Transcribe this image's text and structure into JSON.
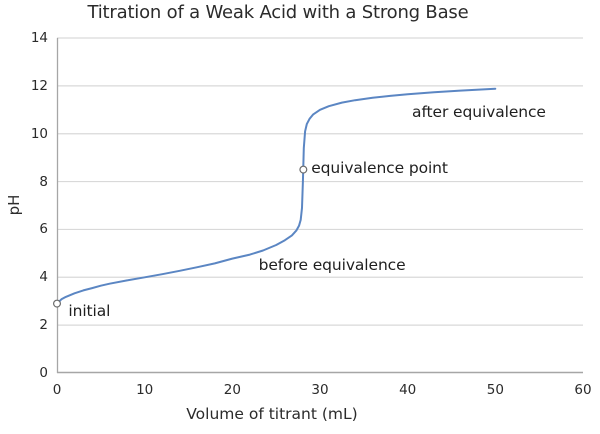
{
  "chart_data": {
    "type": "line",
    "title": "Titration of a Weak Acid with a Strong Base",
    "xlabel": "Volume of titrant (mL)",
    "ylabel": "pH",
    "xlim": [
      0,
      60
    ],
    "ylim": [
      0,
      14
    ],
    "xticks": [
      0,
      10,
      20,
      30,
      40,
      50,
      60
    ],
    "yticks": [
      0,
      2,
      4,
      6,
      8,
      10,
      12,
      14
    ],
    "grid": "horizontal",
    "legend": "none",
    "line_color": "#5B86C3",
    "grid_color": "#d9d9d9",
    "spine_color": "#a6a6a6",
    "marker_stroke_color": "#6b6b6b",
    "series": [
      {
        "name": "titration curve",
        "x": [
          0,
          0.5,
          1,
          2,
          3,
          4,
          5,
          6,
          8,
          10,
          12,
          14,
          16,
          18,
          20,
          22,
          23.5,
          25,
          26,
          26.8,
          27.3,
          27.6,
          27.8,
          27.95,
          28.05,
          28.15,
          28.3,
          28.5,
          28.8,
          29.2,
          30,
          31,
          32.5,
          34,
          36,
          38,
          40,
          43,
          46,
          50
        ],
        "y": [
          2.9,
          3.08,
          3.18,
          3.33,
          3.45,
          3.55,
          3.65,
          3.73,
          3.87,
          4.0,
          4.13,
          4.27,
          4.42,
          4.58,
          4.78,
          4.95,
          5.12,
          5.35,
          5.55,
          5.75,
          5.95,
          6.15,
          6.4,
          6.9,
          8.0,
          9.4,
          10.1,
          10.4,
          10.62,
          10.8,
          11.0,
          11.15,
          11.3,
          11.4,
          11.5,
          11.58,
          11.65,
          11.73,
          11.8,
          11.88
        ]
      }
    ],
    "markers": [
      {
        "x": 0,
        "y": 2.9,
        "label": "initial point"
      },
      {
        "x": 28.1,
        "y": 8.5,
        "label": "equivalence point"
      }
    ],
    "annotations": [
      {
        "text": "initial",
        "x": 1.3,
        "y": 2.6
      },
      {
        "text": "before equivalence",
        "x": 23,
        "y": 4.5
      },
      {
        "text": "equivalence point",
        "x": 29,
        "y": 8.55
      },
      {
        "text": "after equivalence",
        "x": 40.5,
        "y": 10.9
      }
    ]
  }
}
